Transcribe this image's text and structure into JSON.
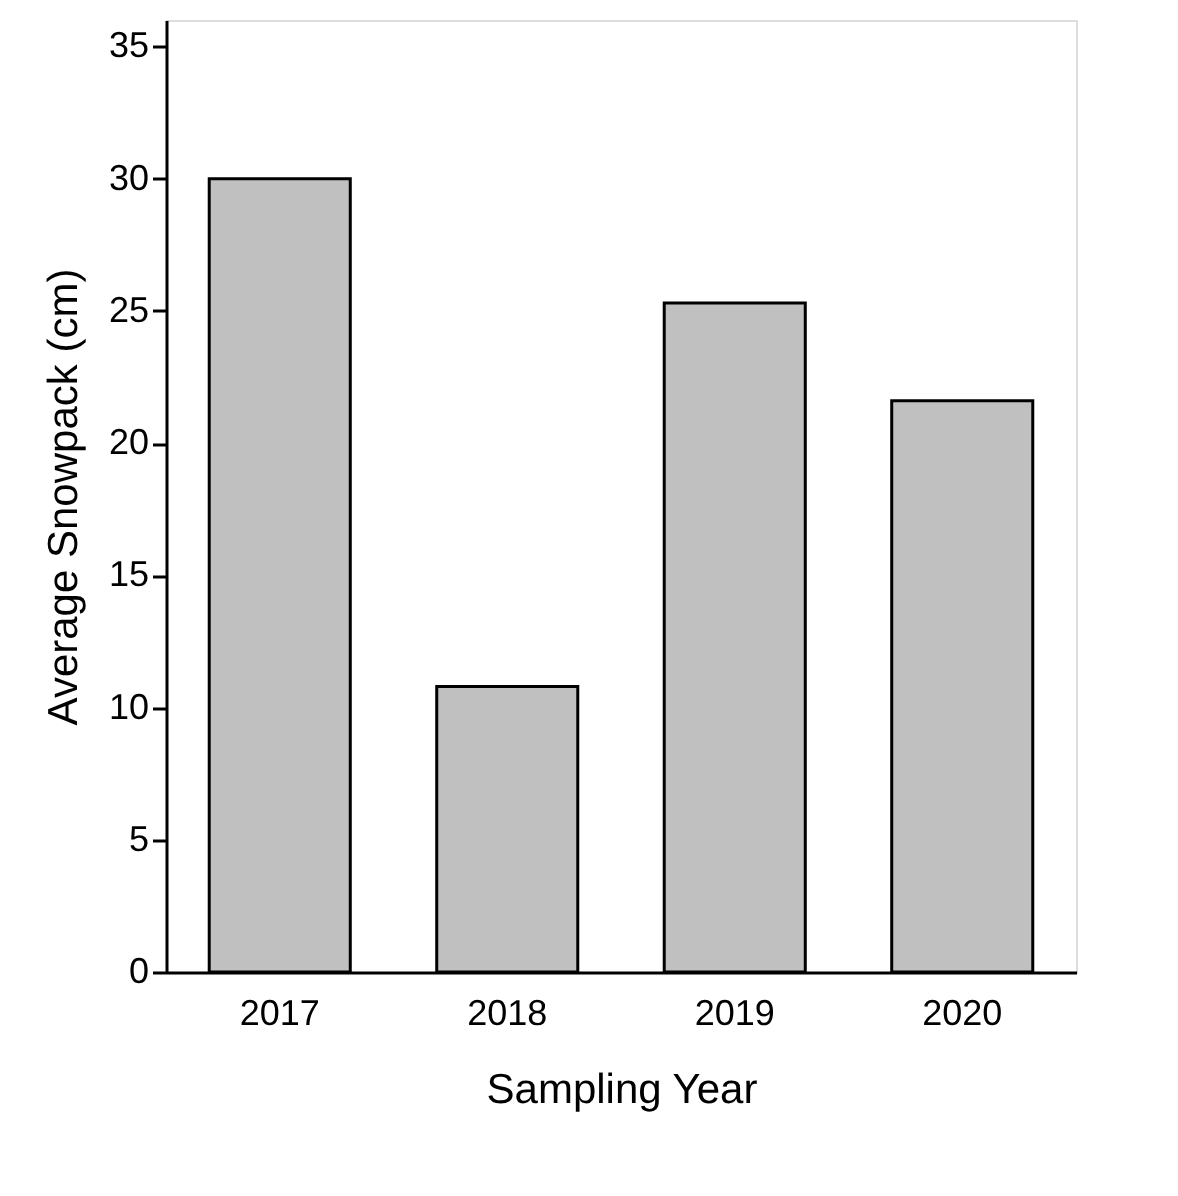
{
  "chart_data": {
    "type": "bar",
    "xlabel": "Sampling Year",
    "ylabel": "Average Snowpack (cm)",
    "categories": [
      "2017",
      "2018",
      "2019",
      "2020"
    ],
    "values": [
      30.0,
      10.8,
      25.3,
      21.6
    ],
    "color": "#c0c0c0",
    "ylim": [
      0,
      36
    ],
    "yticks": [
      0,
      5,
      10,
      15,
      20,
      25,
      30,
      35
    ],
    "grid": false
  }
}
